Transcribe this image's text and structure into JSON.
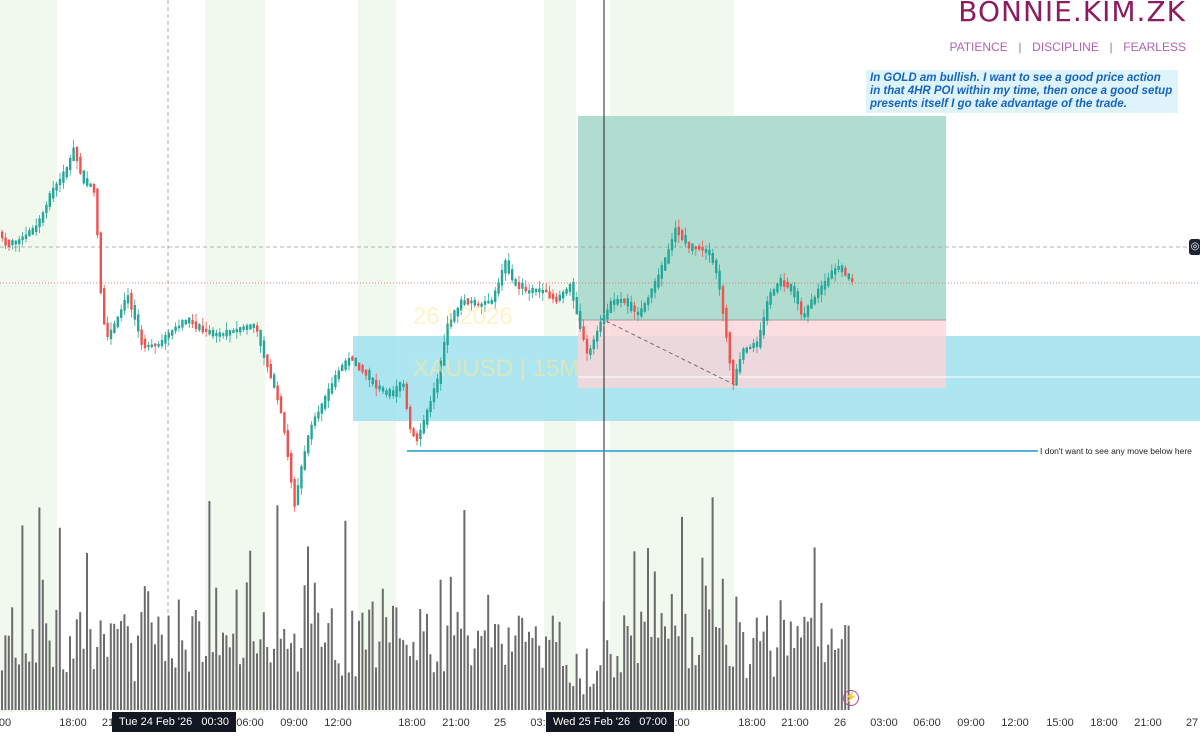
{
  "brand": {
    "title": "BONNIE.KIM.ZK",
    "tagline": "PATIENCE  |  DISCIPLINE  |  FEARLESS"
  },
  "note": {
    "text": "In GOLD am bullish. I want to see a good price action in that 4HR POI within my time, then once a good setup presents itself I go take advantage of the trade."
  },
  "annotation": {
    "text": "I don't want to see any move below here"
  },
  "watermark": {
    "date": "26 | 2026",
    "symbol": "XAUUSD | 15M"
  },
  "colors": {
    "up": "#26a69a",
    "down": "#ef5350",
    "volume": "#6b6b6b",
    "poi_zone": "#9fe2ee",
    "target_zone": "#a9d9cb",
    "stop_zone": "#fbd5d8",
    "session": "#f1f8ee",
    "brand": "#8b1c62"
  },
  "icons": {
    "price_badge": "eye-off-icon",
    "snapshot": "lightning-icon"
  },
  "chart_data": {
    "type": "candlestick",
    "symbol": "XAUUSD",
    "timeframe": "15M",
    "x_ticks": [
      "00",
      "18:00",
      "21",
      "06:00",
      "09:00",
      "12:00",
      "18:00",
      "21:00",
      "25",
      "03:",
      "12:00",
      "18:00",
      "21:00",
      "26",
      "03:00",
      "06:00",
      "09:00",
      "12:00",
      "15:00",
      "18:00",
      "21:00",
      "27"
    ],
    "crosshair_labels": [
      "Tue 24 Feb '26   00:30",
      "Wed 25 Feb '26   07:00"
    ],
    "price_series": [
      {
        "x": 0,
        "y": 232
      },
      {
        "x": 10,
        "y": 245
      },
      {
        "x": 25,
        "y": 238
      },
      {
        "x": 40,
        "y": 225
      },
      {
        "x": 55,
        "y": 190
      },
      {
        "x": 68,
        "y": 172
      },
      {
        "x": 76,
        "y": 148
      },
      {
        "x": 85,
        "y": 180
      },
      {
        "x": 97,
        "y": 190
      },
      {
        "x": 103,
        "y": 290
      },
      {
        "x": 108,
        "y": 340
      },
      {
        "x": 115,
        "y": 328
      },
      {
        "x": 130,
        "y": 295
      },
      {
        "x": 145,
        "y": 345
      },
      {
        "x": 160,
        "y": 345
      },
      {
        "x": 175,
        "y": 330
      },
      {
        "x": 190,
        "y": 320
      },
      {
        "x": 205,
        "y": 330
      },
      {
        "x": 220,
        "y": 335
      },
      {
        "x": 240,
        "y": 330
      },
      {
        "x": 258,
        "y": 325
      },
      {
        "x": 265,
        "y": 352
      },
      {
        "x": 275,
        "y": 380
      },
      {
        "x": 285,
        "y": 420
      },
      {
        "x": 292,
        "y": 470
      },
      {
        "x": 297,
        "y": 505
      },
      {
        "x": 305,
        "y": 460
      },
      {
        "x": 315,
        "y": 420
      },
      {
        "x": 325,
        "y": 405
      },
      {
        "x": 340,
        "y": 372
      },
      {
        "x": 352,
        "y": 358
      },
      {
        "x": 365,
        "y": 370
      },
      {
        "x": 380,
        "y": 388
      },
      {
        "x": 395,
        "y": 395
      },
      {
        "x": 405,
        "y": 380
      },
      {
        "x": 412,
        "y": 428
      },
      {
        "x": 420,
        "y": 440
      },
      {
        "x": 430,
        "y": 410
      },
      {
        "x": 440,
        "y": 380
      },
      {
        "x": 450,
        "y": 325
      },
      {
        "x": 465,
        "y": 300
      },
      {
        "x": 480,
        "y": 305
      },
      {
        "x": 495,
        "y": 300
      },
      {
        "x": 508,
        "y": 262
      },
      {
        "x": 515,
        "y": 282
      },
      {
        "x": 530,
        "y": 292
      },
      {
        "x": 545,
        "y": 290
      },
      {
        "x": 560,
        "y": 300
      },
      {
        "x": 572,
        "y": 285
      },
      {
        "x": 580,
        "y": 318
      },
      {
        "x": 590,
        "y": 355
      },
      {
        "x": 600,
        "y": 330
      },
      {
        "x": 612,
        "y": 305
      },
      {
        "x": 625,
        "y": 300
      },
      {
        "x": 640,
        "y": 315
      },
      {
        "x": 655,
        "y": 290
      },
      {
        "x": 667,
        "y": 262
      },
      {
        "x": 678,
        "y": 228
      },
      {
        "x": 692,
        "y": 248
      },
      {
        "x": 710,
        "y": 250
      },
      {
        "x": 720,
        "y": 275
      },
      {
        "x": 728,
        "y": 330
      },
      {
        "x": 735,
        "y": 385
      },
      {
        "x": 745,
        "y": 350
      },
      {
        "x": 760,
        "y": 345
      },
      {
        "x": 770,
        "y": 300
      },
      {
        "x": 782,
        "y": 280
      },
      {
        "x": 795,
        "y": 290
      },
      {
        "x": 805,
        "y": 318
      },
      {
        "x": 815,
        "y": 300
      },
      {
        "x": 828,
        "y": 282
      },
      {
        "x": 840,
        "y": 265
      },
      {
        "x": 850,
        "y": 278
      }
    ],
    "volume_pattern": [
      30,
      55,
      40,
      70,
      35,
      45,
      60,
      25,
      50,
      80,
      40,
      30,
      95,
      50,
      45,
      35,
      60,
      70,
      45,
      30
    ]
  }
}
